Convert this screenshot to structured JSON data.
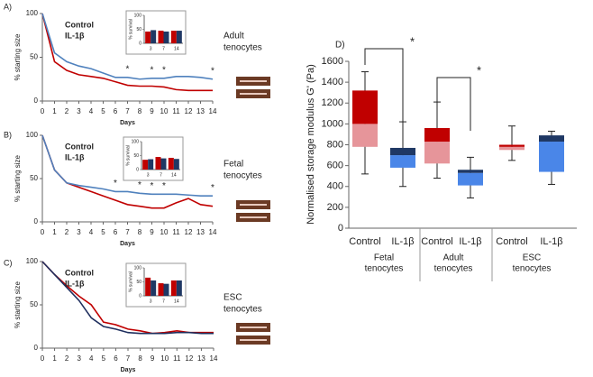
{
  "chart_data": [
    {
      "type": "line",
      "panel_label": "A)",
      "x": [
        0,
        1,
        2,
        3,
        4,
        5,
        6,
        7,
        8,
        9,
        10,
        11,
        12,
        13,
        14
      ],
      "xlim": [
        0,
        14
      ],
      "xticks": [
        0,
        1,
        2,
        3,
        4,
        5,
        6,
        7,
        8,
        9,
        10,
        11,
        12,
        13,
        14
      ],
      "ylim": [
        0,
        100
      ],
      "yticks": [
        0,
        50,
        100
      ],
      "x_label": "Days",
      "y_label": "% starting size",
      "side_label": [
        "Adult",
        "tenocytes"
      ],
      "series": [
        {
          "name": "Control",
          "color": "#c00000",
          "values": [
            100,
            45,
            35,
            30,
            28,
            26,
            22,
            18,
            17,
            17,
            16,
            13,
            12,
            12,
            12
          ]
        },
        {
          "name": "IL-1β",
          "color": "#4f81bd",
          "legend_color": "#1f3864",
          "values": [
            100,
            55,
            45,
            40,
            37,
            32,
            27,
            27,
            25,
            26,
            26,
            28,
            28,
            27,
            25
          ]
        }
      ],
      "significance": {
        "label": "*",
        "x": [
          7,
          9,
          10,
          14
        ]
      },
      "inset": {
        "type": "bar",
        "categories": [
          "3",
          "7",
          "14"
        ],
        "ylim": [
          0,
          100
        ],
        "yticks": [
          0,
          50,
          100
        ],
        "y_label": "% survival",
        "series": [
          {
            "name": "Control",
            "color": "#c00000",
            "values": [
              42,
              45,
              45
            ]
          },
          {
            "name": "IL-1β",
            "color": "#1f3864",
            "values": [
              47,
              42,
              45
            ]
          }
        ]
      }
    },
    {
      "type": "line",
      "panel_label": "B)",
      "x": [
        0,
        1,
        2,
        3,
        4,
        5,
        6,
        7,
        8,
        9,
        10,
        11,
        12,
        13,
        14
      ],
      "xlim": [
        0,
        14
      ],
      "xticks": [
        0,
        1,
        2,
        3,
        4,
        5,
        6,
        7,
        8,
        9,
        10,
        11,
        12,
        13,
        14
      ],
      "ylim": [
        0,
        100
      ],
      "yticks": [
        0,
        50,
        100
      ],
      "x_label": "Days",
      "y_label": "% starting size",
      "side_label": [
        "Fetal",
        "tenocytes"
      ],
      "series": [
        {
          "name": "Control",
          "color": "#c00000",
          "values": [
            100,
            60,
            45,
            40,
            35,
            30,
            25,
            20,
            18,
            16,
            16,
            22,
            27,
            20,
            18
          ]
        },
        {
          "name": "IL-1β",
          "color": "#4f81bd",
          "legend_color": "#1f3864",
          "values": [
            100,
            60,
            45,
            42,
            40,
            38,
            35,
            35,
            33,
            32,
            32,
            32,
            31,
            30,
            30
          ]
        }
      ],
      "significance": {
        "label": "*",
        "x": [
          6,
          8,
          9,
          10,
          14
        ]
      },
      "inset": {
        "type": "bar",
        "categories": [
          "3",
          "7",
          "14"
        ],
        "ylim": [
          0,
          100
        ],
        "yticks": [
          0,
          50,
          100
        ],
        "y_label": "% survival",
        "series": [
          {
            "name": "Control",
            "color": "#c00000",
            "values": [
              35,
              45,
              42
            ]
          },
          {
            "name": "IL-1β",
            "color": "#1f3864",
            "values": [
              37,
              40,
              38
            ]
          }
        ]
      }
    },
    {
      "type": "line",
      "panel_label": "C)",
      "x": [
        0,
        1,
        2,
        3,
        4,
        5,
        6,
        7,
        8,
        9,
        10,
        11,
        12,
        13,
        14
      ],
      "xlim": [
        0,
        14
      ],
      "xticks": [
        0,
        1,
        2,
        3,
        4,
        5,
        6,
        7,
        8,
        9,
        10,
        11,
        12,
        13,
        14
      ],
      "ylim": [
        0,
        100
      ],
      "yticks": [
        0,
        50,
        100
      ],
      "x_label": "Days",
      "y_label": "% starting size",
      "side_label": [
        "ESC",
        "tenocytes"
      ],
      "series": [
        {
          "name": "Control",
          "color": "#c00000",
          "values": [
            100,
            85,
            72,
            60,
            50,
            30,
            27,
            22,
            20,
            17,
            18,
            20,
            18,
            18,
            18
          ]
        },
        {
          "name": "IL-1β",
          "color": "#1f2f5e",
          "legend_color": "#1f3864",
          "values": [
            100,
            85,
            70,
            55,
            35,
            25,
            22,
            18,
            17,
            17,
            17,
            18,
            18,
            17,
            17
          ]
        }
      ],
      "inset": {
        "type": "bar",
        "categories": [
          "3",
          "7",
          "14"
        ],
        "ylim": [
          0,
          100
        ],
        "yticks": [
          0,
          50,
          100
        ],
        "y_label": "% survival",
        "series": [
          {
            "name": "Control",
            "color": "#c00000",
            "values": [
              65,
              45,
              55
            ]
          },
          {
            "name": "IL-1β",
            "color": "#1f3864",
            "values": [
              55,
              43,
              55
            ]
          }
        ]
      }
    },
    {
      "type": "box",
      "panel_label": "D)",
      "y_label": "Normalised  storage modulus G' (Pa)",
      "ylim": [
        0,
        1600
      ],
      "yticks": [
        0,
        200,
        400,
        600,
        800,
        1000,
        1200,
        1400,
        1600
      ],
      "significance_label": "*",
      "groups": [
        {
          "name": [
            "Fetal",
            "tenocytes"
          ],
          "boxes": [
            {
              "name": "Control",
              "low": 520,
              "q1": 780,
              "median": 1000,
              "q3": 1320,
              "high": 1500,
              "dark": "#c00000",
              "light": "#e6959a"
            },
            {
              "name": "IL-1β",
              "low": 400,
              "q1": 580,
              "median": 700,
              "q3": 770,
              "high": 1020,
              "dark": "#1f3864",
              "light": "#4a86e8"
            }
          ]
        },
        {
          "name": [
            "Adult",
            "tenocytes"
          ],
          "boxes": [
            {
              "name": "Control",
              "low": 480,
              "q1": 620,
              "median": 830,
              "q3": 960,
              "high": 1210,
              "dark": "#c00000",
              "light": "#e6959a"
            },
            {
              "name": "IL-1β",
              "low": 290,
              "q1": 410,
              "median": 530,
              "q3": 560,
              "high": 680,
              "dark": "#1f3864",
              "light": "#4a86e8"
            }
          ]
        },
        {
          "name": [
            "ESC",
            "tenocytes"
          ],
          "boxes": [
            {
              "name": "Control",
              "low": 650,
              "q1": 750,
              "median": 780,
              "q3": 800,
              "high": 980,
              "dark": "#c00000",
              "light": "#e6959a"
            },
            {
              "name": "IL-1β",
              "low": 420,
              "q1": 540,
              "median": 830,
              "q3": 890,
              "high": 930,
              "dark": "#1f3864",
              "light": "#4a86e8"
            }
          ]
        }
      ]
    }
  ]
}
